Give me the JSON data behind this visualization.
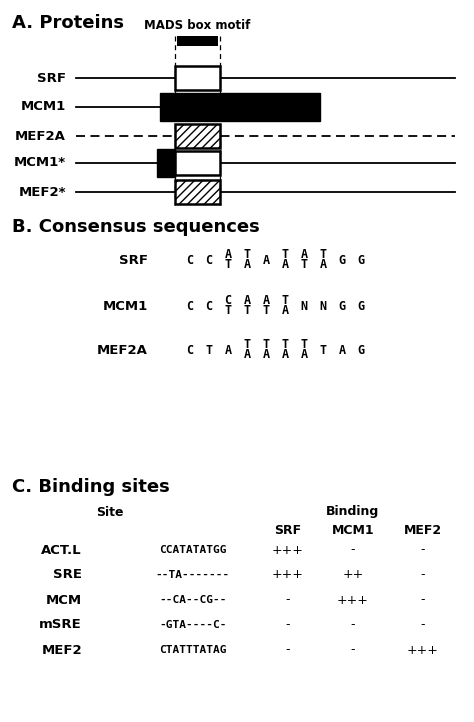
{
  "title_A": "A. Proteins",
  "title_B": "B. Consensus sequences",
  "title_C": "C. Binding sites",
  "mads_label": "MADS box motif",
  "proteins": [
    "SRF",
    "MCM1",
    "MEF2A",
    "MCM1*",
    "MEF2*"
  ],
  "srf_row": [
    [
      "C",
      ""
    ],
    [
      "C",
      ""
    ],
    [
      "A",
      "T"
    ],
    [
      "T",
      "A"
    ],
    [
      "A",
      ""
    ],
    [
      "T",
      "A"
    ],
    [
      "A",
      "T"
    ],
    [
      "T",
      "A"
    ],
    [
      "G",
      ""
    ],
    [
      "G",
      ""
    ]
  ],
  "mcm1_row": [
    [
      "C",
      ""
    ],
    [
      "C",
      ""
    ],
    [
      "C",
      "T"
    ],
    [
      "A",
      "T"
    ],
    [
      "A",
      "T"
    ],
    [
      "T",
      "A"
    ],
    [
      "N",
      ""
    ],
    [
      "N",
      ""
    ],
    [
      "G",
      ""
    ],
    [
      "G",
      ""
    ]
  ],
  "mef2a_row": [
    [
      "C",
      ""
    ],
    [
      "T",
      ""
    ],
    [
      "A",
      ""
    ],
    [
      "T",
      "A"
    ],
    [
      "T",
      "A"
    ],
    [
      "T",
      "A"
    ],
    [
      "T",
      "A"
    ],
    [
      "T",
      ""
    ],
    [
      "A",
      ""
    ],
    [
      "G",
      ""
    ]
  ],
  "binding_data": [
    [
      "ACT.L",
      "CCATATATGG",
      "+++",
      "-",
      "-"
    ],
    [
      "SRE",
      "--TA-------",
      "+++",
      "++",
      "-"
    ],
    [
      "MCM",
      "--CA--CG--",
      "-",
      "+++",
      "-"
    ],
    [
      "mSRE",
      "-GTA----C-",
      "-",
      "-",
      "-"
    ],
    [
      "MEF2",
      "CTATTTATAG",
      "-",
      "-",
      "+++"
    ]
  ]
}
